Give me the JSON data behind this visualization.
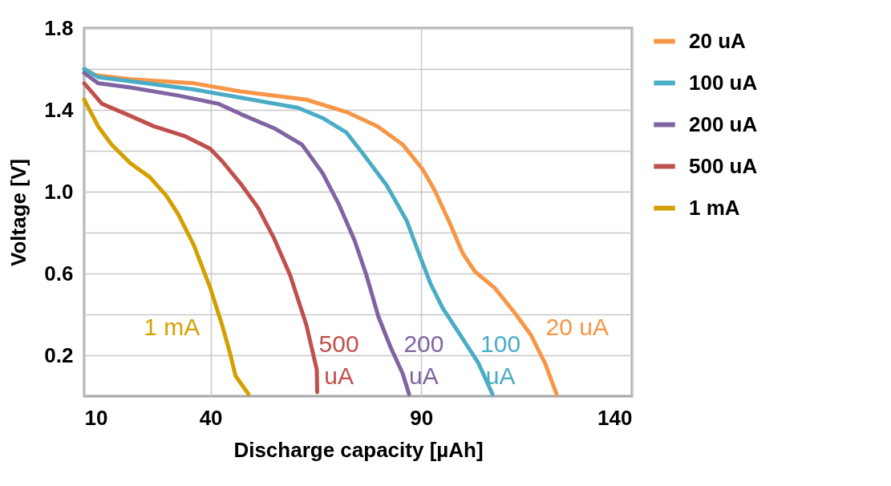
{
  "chart_data": {
    "type": "line",
    "xlabel": "Discharge capacity [µAh]",
    "ylabel": "Voltage [V]",
    "xlim": [
      10,
      140
    ],
    "xticks": [
      10,
      40,
      90,
      140
    ],
    "ylim": [
      0,
      1.8
    ],
    "yticks": [
      {
        "value": 0.2,
        "label": "0.2"
      },
      {
        "value": 0.4,
        "label": null
      },
      {
        "value": 0.6,
        "label": "0.6"
      },
      {
        "value": 0.8,
        "label": null
      },
      {
        "value": 1.0,
        "label": "1.0"
      },
      {
        "value": 1.2,
        "label": null
      },
      {
        "value": 1.4,
        "label": "1.4"
      },
      {
        "value": 1.6,
        "label": null
      },
      {
        "value": 1.8,
        "label": "1.8"
      }
    ],
    "grid": true,
    "legend": "right",
    "marker": "none",
    "line_style": "solid",
    "series": [
      {
        "name": "20 uA",
        "color": "#f79646",
        "x": [
          10,
          12.7,
          20.9,
          36,
          47.1,
          62.7,
          72.2,
          79.6,
          85.6,
          90.3,
          93.1,
          96.9,
          99.8,
          102.7,
          107.4,
          112.1,
          116,
          119.4,
          122.1
        ],
        "values": [
          1.6,
          1.57,
          1.55,
          1.53,
          1.49,
          1.45,
          1.39,
          1.32,
          1.23,
          1.11,
          1.01,
          0.84,
          0.7,
          0.61,
          0.53,
          0.41,
          0.3,
          0.16,
          0.01
        ]
      },
      {
        "name": "100 uA",
        "color": "#4bacc6",
        "x": [
          10,
          13.3,
          20.9,
          36,
          47.1,
          60.8,
          66.6,
          72.2,
          76,
          81.8,
          86.5,
          89.4,
          92.2,
          95.1,
          98.9,
          103.6,
          106.9
        ],
        "values": [
          1.6,
          1.56,
          1.54,
          1.5,
          1.46,
          1.41,
          1.36,
          1.29,
          1.19,
          1.03,
          0.86,
          0.7,
          0.55,
          0.43,
          0.31,
          0.16,
          0.01
        ]
      },
      {
        "name": "200 uA",
        "color": "#8064a2",
        "x": [
          10,
          13.3,
          20.9,
          32.3,
          41.8,
          47.1,
          55.1,
          61.7,
          66.6,
          70.4,
          74.2,
          77,
          79.8,
          82.7,
          85.6,
          87.1
        ],
        "values": [
          1.58,
          1.53,
          1.51,
          1.47,
          1.43,
          1.38,
          1.31,
          1.23,
          1.09,
          0.94,
          0.76,
          0.59,
          0.39,
          0.24,
          0.11,
          0.01
        ]
      },
      {
        "name": "500 uA",
        "color": "#c0504d",
        "x": [
          10,
          14.2,
          19.9,
          26.5,
          34.1,
          39.9,
          42.7,
          47.1,
          51.3,
          55.1,
          58.9,
          62.7,
          65.2,
          65.3
        ],
        "values": [
          1.53,
          1.43,
          1.38,
          1.32,
          1.27,
          1.21,
          1.15,
          1.04,
          0.92,
          0.77,
          0.59,
          0.35,
          0.13,
          0.02
        ]
      },
      {
        "name": "1 mA",
        "color": "#d4a000",
        "x": [
          10,
          13.3,
          16.5,
          20.9,
          25.6,
          29.5,
          32.3,
          36,
          39.9,
          42.7,
          44.6,
          45.9,
          49
        ],
        "values": [
          1.45,
          1.32,
          1.23,
          1.14,
          1.07,
          0.98,
          0.89,
          0.74,
          0.53,
          0.35,
          0.21,
          0.1,
          0.01
        ]
      }
    ],
    "annotations": [
      "1 mA",
      "500\nuA",
      "200\nuA",
      "100\nuA",
      "20 uA"
    ]
  }
}
